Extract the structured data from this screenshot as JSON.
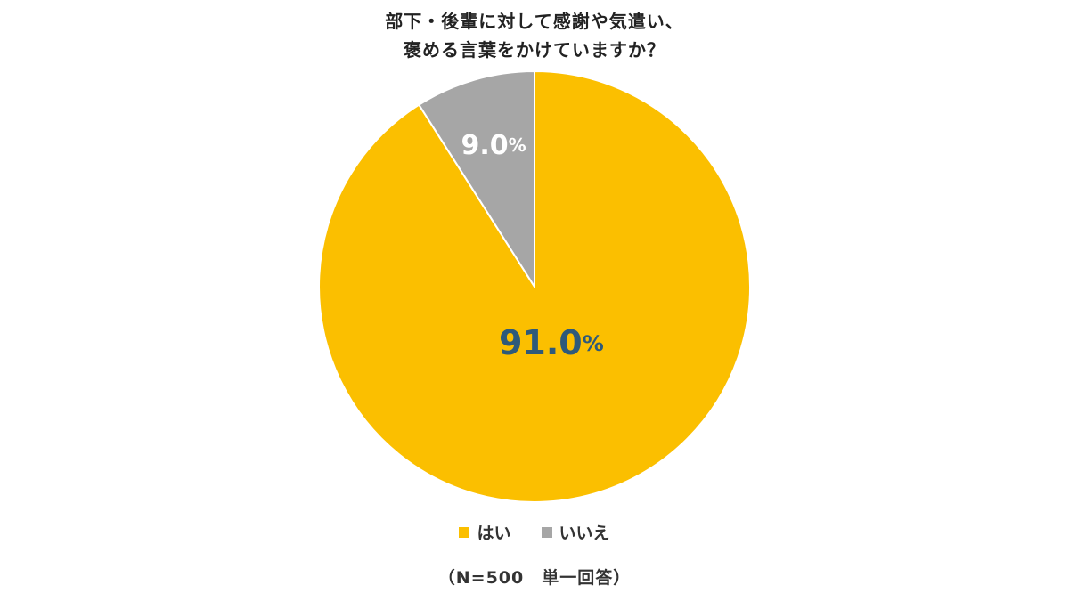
{
  "chart_data": {
    "type": "pie",
    "title_lines": [
      "部下・後輩に対して感謝や気遣い、",
      "褒める言葉をかけていますか？"
    ],
    "categories": [
      "はい",
      "いいえ"
    ],
    "values": [
      91.0,
      9.0
    ],
    "data_labels": [
      {
        "value": "91.0",
        "unit": "%"
      },
      {
        "value": "9.0",
        "unit": "%"
      }
    ],
    "colors": [
      "#FBBF00",
      "#A6A6A6"
    ],
    "label_colors": [
      "#2E5A7A",
      "#FFFFFF"
    ],
    "start_angle_deg": 0,
    "direction": "clockwise",
    "legend_position": "bottom",
    "note": "（N=500　単一回答）"
  }
}
